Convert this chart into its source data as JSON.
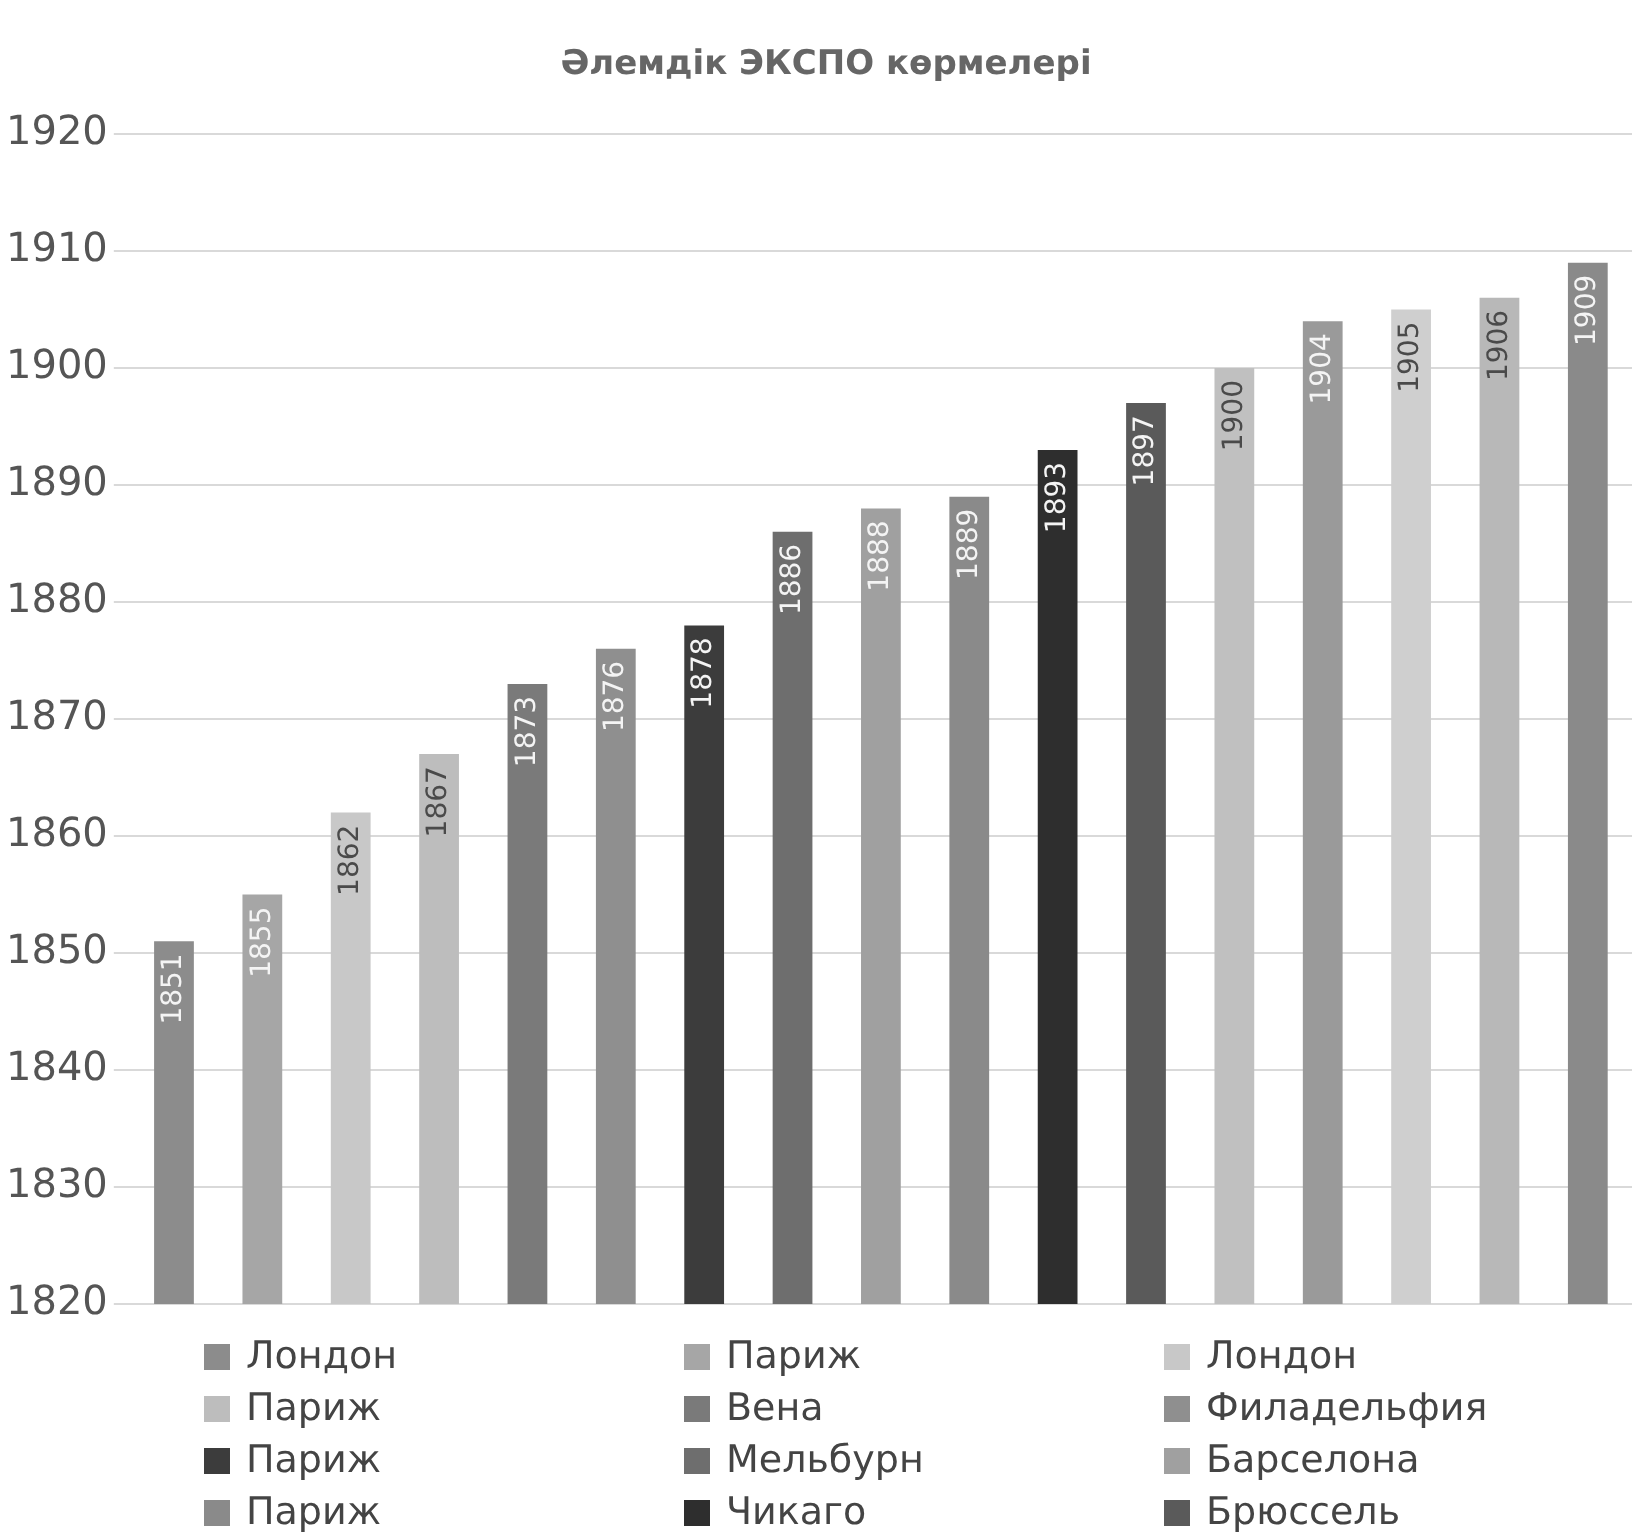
{
  "chart_data": {
    "type": "bar",
    "title": "Әлемдік ЭКСПО көрмелері",
    "categories": [
      null,
      null,
      null,
      null,
      null,
      null,
      null,
      null,
      null,
      null,
      null,
      null,
      null,
      null,
      null,
      null,
      null
    ],
    "series": [
      {
        "name": "Лондон",
        "color": "#8c8c8c",
        "values": [
          1851,
          null,
          null,
          null,
          null,
          null,
          null,
          null,
          null,
          null,
          null,
          null,
          null,
          null,
          null,
          null,
          null
        ]
      },
      {
        "name": "Париж",
        "color": "#a6a6a6",
        "values": [
          null,
          1855,
          null,
          null,
          null,
          null,
          null,
          null,
          null,
          null,
          null,
          null,
          null,
          null,
          null,
          null,
          null
        ]
      },
      {
        "name": "Лондон",
        "color": "#c8c8c8",
        "values": [
          null,
          null,
          1862,
          null,
          null,
          null,
          null,
          null,
          null,
          null,
          null,
          null,
          null,
          null,
          null,
          null,
          null
        ]
      },
      {
        "name": "Париж",
        "color": "#bdbdbd",
        "values": [
          null,
          null,
          null,
          1867,
          null,
          null,
          null,
          null,
          null,
          null,
          null,
          null,
          null,
          null,
          null,
          null,
          null
        ]
      },
      {
        "name": "Вена",
        "color": "#7a7a7a",
        "values": [
          null,
          null,
          null,
          null,
          1873,
          null,
          null,
          null,
          null,
          null,
          null,
          null,
          null,
          null,
          null,
          null,
          null
        ]
      },
      {
        "name": "Филадельфия",
        "color": "#8f8f8f",
        "values": [
          null,
          null,
          null,
          null,
          null,
          1876,
          null,
          null,
          null,
          null,
          null,
          null,
          null,
          null,
          null,
          null,
          null
        ]
      },
      {
        "name": "Париж",
        "color": "#3c3c3c",
        "values": [
          null,
          null,
          null,
          null,
          null,
          null,
          1878,
          null,
          null,
          null,
          null,
          null,
          null,
          null,
          null,
          null,
          null
        ]
      },
      {
        "name": "Мельбурн",
        "color": "#6e6e6e",
        "values": [
          null,
          null,
          null,
          null,
          null,
          null,
          null,
          1886,
          null,
          null,
          null,
          null,
          null,
          null,
          null,
          null,
          null
        ]
      },
      {
        "name": "Барселона",
        "color": "#a0a0a0",
        "values": [
          null,
          null,
          null,
          null,
          null,
          null,
          null,
          null,
          1888,
          null,
          null,
          null,
          null,
          null,
          null,
          null,
          null
        ]
      },
      {
        "name": "Париж",
        "color": "#8a8a8a",
        "values": [
          null,
          null,
          null,
          null,
          null,
          null,
          null,
          null,
          null,
          1889,
          null,
          null,
          null,
          null,
          null,
          null,
          null
        ]
      },
      {
        "name": "Чикаго",
        "color": "#2e2e2e",
        "values": [
          null,
          null,
          null,
          null,
          null,
          null,
          null,
          null,
          null,
          null,
          1893,
          null,
          null,
          null,
          null,
          null,
          null
        ]
      },
      {
        "name": "Брюссель",
        "color": "#5a5a5a",
        "values": [
          null,
          null,
          null,
          null,
          null,
          null,
          null,
          null,
          null,
          null,
          null,
          1897,
          null,
          null,
          null,
          null,
          null
        ]
      },
      {
        "color": "#c0c0c0",
        "values": [
          null,
          null,
          null,
          null,
          null,
          null,
          null,
          null,
          null,
          null,
          null,
          null,
          1900,
          null,
          null,
          null,
          null
        ]
      },
      {
        "color": "#9a9a9a",
        "values": [
          null,
          null,
          null,
          null,
          null,
          null,
          null,
          null,
          null,
          null,
          null,
          null,
          null,
          1904,
          null,
          null,
          null
        ]
      },
      {
        "color": "#cfcfcf",
        "values": [
          null,
          null,
          null,
          null,
          null,
          null,
          null,
          null,
          null,
          null,
          null,
          null,
          null,
          null,
          1905,
          null,
          null
        ]
      },
      {
        "color": "#b8b8b8",
        "values": [
          null,
          null,
          null,
          null,
          null,
          null,
          null,
          null,
          null,
          null,
          null,
          null,
          null,
          null,
          null,
          1906,
          null
        ]
      },
      {
        "color": "#8a8a8a",
        "values": [
          null,
          null,
          null,
          null,
          null,
          null,
          null,
          null,
          null,
          null,
          null,
          null,
          null,
          null,
          null,
          null,
          1909
        ]
      }
    ],
    "ylim": [
      1820,
      1920
    ],
    "yticks": [
      1820,
      1830,
      1840,
      1850,
      1860,
      1870,
      1880,
      1890,
      1900,
      1910,
      1920
    ],
    "grid": "y",
    "legend": "bottom",
    "tick_labels": "y",
    "data_labels": true
  }
}
